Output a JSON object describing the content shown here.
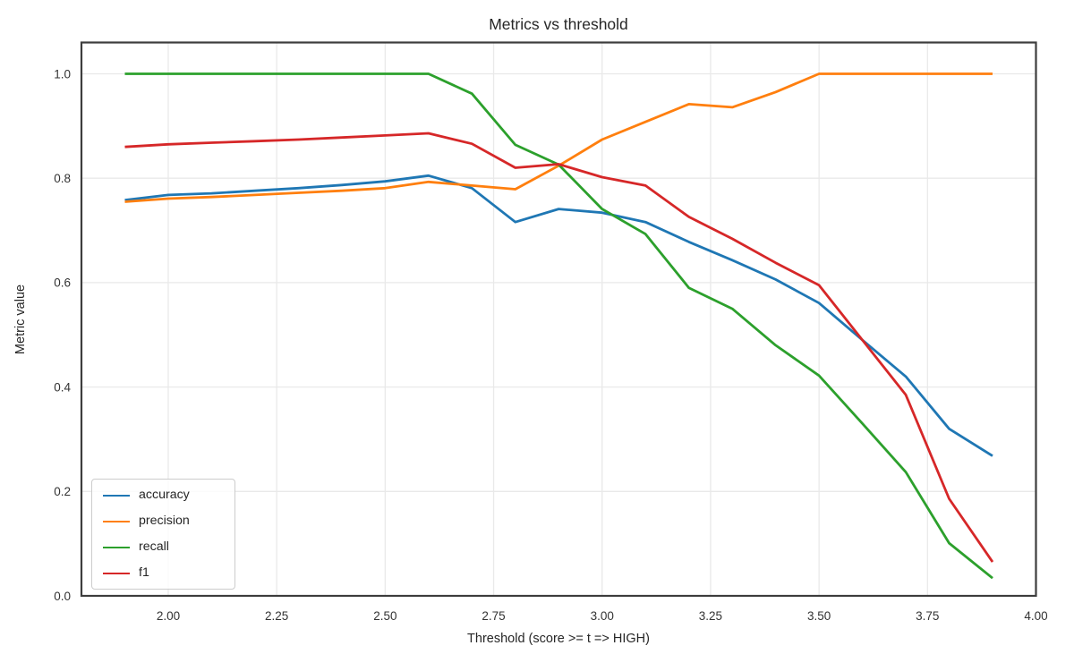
{
  "figure": {
    "background": "#ffffff"
  },
  "chart_data": {
    "type": "line",
    "title": "Metrics vs threshold",
    "xlabel": "Threshold (score >= t => HIGH)",
    "ylabel": "Metric value",
    "xlim": [
      1.8,
      4.0
    ],
    "ylim": [
      0.0,
      1.06
    ],
    "grid": true,
    "legend_position": "lower left",
    "x": [
      1.9,
      2.0,
      2.1,
      2.2,
      2.3,
      2.4,
      2.5,
      2.6,
      2.7,
      2.8,
      2.9,
      3.0,
      3.1,
      3.2,
      3.3,
      3.4,
      3.5,
      3.6,
      3.7,
      3.8,
      3.9
    ],
    "xtick_values": [
      2.0,
      2.25,
      2.5,
      2.75,
      3.0,
      3.25,
      3.5,
      3.75,
      4.0
    ],
    "xtick_labels": [
      "2.00",
      "2.25",
      "2.50",
      "2.75",
      "3.00",
      "3.25",
      "3.50",
      "3.75",
      "4.00"
    ],
    "ytick_values": [
      0.0,
      0.2,
      0.4,
      0.6,
      0.8,
      1.0
    ],
    "ytick_labels": [
      "0.0",
      "0.2",
      "0.4",
      "0.6",
      "0.8",
      "1.0"
    ],
    "series": [
      {
        "name": "accuracy",
        "color": "#1f77b4",
        "values": [
          0.758,
          0.768,
          0.771,
          0.776,
          0.781,
          0.787,
          0.794,
          0.805,
          0.781,
          0.716,
          0.741,
          0.734,
          0.716,
          0.678,
          0.643,
          0.606,
          0.561,
          0.49,
          0.42,
          0.32,
          0.268
        ]
      },
      {
        "name": "precision",
        "color": "#ff7f0e",
        "values": [
          0.755,
          0.761,
          0.764,
          0.768,
          0.772,
          0.776,
          0.781,
          0.793,
          0.786,
          0.779,
          0.824,
          0.874,
          0.908,
          0.942,
          0.936,
          0.965,
          1.0,
          1.0,
          1.0,
          1.0,
          1.0
        ]
      },
      {
        "name": "recall",
        "color": "#2ca02c",
        "values": [
          1.0,
          1.0,
          1.0,
          1.0,
          1.0,
          1.0,
          1.0,
          1.0,
          0.962,
          0.864,
          0.826,
          0.741,
          0.693,
          0.59,
          0.55,
          0.48,
          0.422,
          0.33,
          0.237,
          0.101,
          0.034
        ]
      },
      {
        "name": "f1",
        "color": "#d62728",
        "values": [
          0.86,
          0.865,
          0.868,
          0.871,
          0.874,
          0.878,
          0.882,
          0.886,
          0.866,
          0.82,
          0.827,
          0.802,
          0.786,
          0.726,
          0.684,
          0.638,
          0.595,
          0.49,
          0.385,
          0.186,
          0.065
        ]
      }
    ],
    "style": {
      "grid_color": "#e9e9e9",
      "spine_color": "#3d3d3d",
      "text_color": "#262626",
      "tick_text_color": "#333333",
      "legend_border_color": "#cccccc",
      "line_width": 2.8
    }
  }
}
